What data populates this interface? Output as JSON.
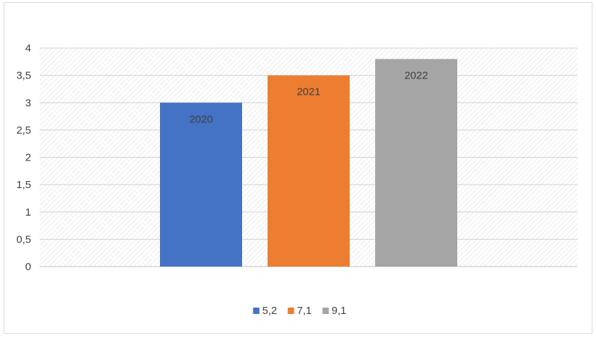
{
  "chart_data": {
    "type": "bar",
    "categories": [
      "2020",
      "2021",
      "2022"
    ],
    "values": [
      3.0,
      3.5,
      3.8
    ],
    "colors": [
      "#4472c4",
      "#ed7d31",
      "#a5a5a5"
    ],
    "data_labels": [
      "2020",
      "2021",
      "2022"
    ],
    "legend": [
      "5,2",
      "7,1",
      "9,1"
    ],
    "legend_position": "bottom",
    "title": "",
    "xlabel": "",
    "ylabel": "",
    "ylim": [
      0,
      4
    ],
    "yticks": [
      "0",
      "0,5",
      "1",
      "1,5",
      "2",
      "2,5",
      "3",
      "3,5",
      "4"
    ],
    "grid": true,
    "plot_background": "diagonal-hatch"
  }
}
